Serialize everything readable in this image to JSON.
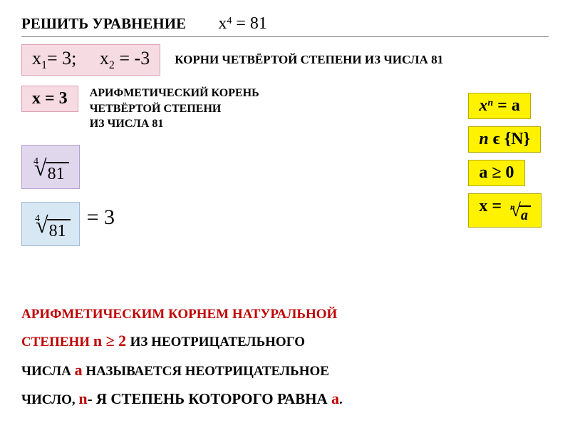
{
  "title": {
    "solve": "РЕШИТЬ УРАВНЕНИЕ",
    "equation_lhs": "x",
    "equation_exp": "4",
    "equation_rhs": "= 81"
  },
  "roots": {
    "x1_var": "x",
    "x1_sub": "1",
    "x1_val": "= 3;",
    "x2_var": "x",
    "x2_sub": "2",
    "x2_val": " = -3",
    "label": "КОРНИ ЧЕТВЁРТОЙ СТЕПЕНИ ИЗ ЧИСЛА 81"
  },
  "arith": {
    "x_eq": "x = 3",
    "label_l1": "АРИФМЕТИЧЕСКИЙ КОРЕНЬ",
    "label_l2": "ЧЕТВЁРТОЙ СТЕПЕНИ",
    "label_l3": "ИЗ ЧИСЛА 81"
  },
  "radical1": {
    "index": "4",
    "radicand": "81"
  },
  "radical2": {
    "index": "4",
    "radicand": "81",
    "result": " = 3"
  },
  "right": {
    "eq1_lhs": "x",
    "eq1_exp": "n",
    "eq1_rhs": " = a",
    "eq2_lhs": "n",
    "eq2_rhs": " ϵ {N}",
    "eq3": "a ≥ 0",
    "eq4_lhs": "x =",
    "eq4_idx": "n",
    "eq4_rad": "a"
  },
  "def": {
    "l1_red": "АРИФМЕТИЧЕСКИМ КОРНЕМ НАТУРАЛЬНОЙ",
    "l2_red": "СТЕПЕНИ",
    "l2_cond": " n ≥ 2 ",
    "l2_black": "ИЗ НЕОТРИЦАТЕЛЬНОГО",
    "l3_black_a": "ЧИСЛА ",
    "l3_a": "a",
    "l3_black_b": " НАЗЫВАЕТСЯ НЕОТРИЦАТЕЛЬНОЕ",
    "l4_a": "ЧИСЛО, ",
    "l4_n": "n",
    "l4_b": "- Я СТЕПЕНЬ КОТОРОГО РАВНА ",
    "l4_aa": "a",
    "l4_dot": "."
  },
  "colors": {
    "pink_bg": "#f6dbe3",
    "lavender_bg": "#e0d7ed",
    "blue_bg": "#d7e7f3",
    "yellow_bg": "#fff200",
    "red_text": "#c00000"
  }
}
